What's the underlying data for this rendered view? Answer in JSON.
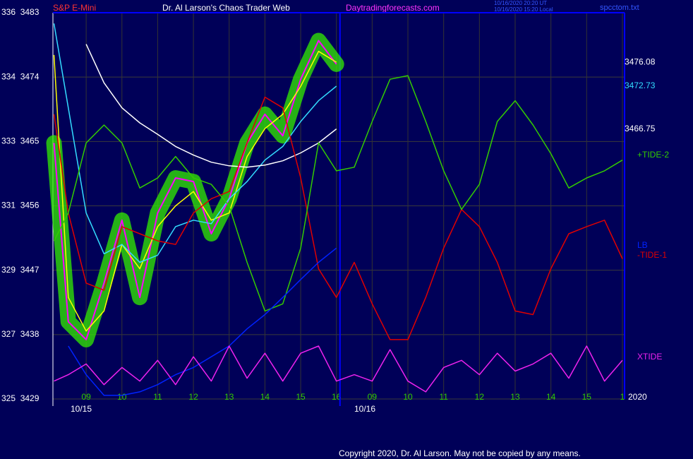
{
  "chart_data": {
    "type": "line",
    "title": "Dr. Al Larson's Chaos Trader Web",
    "annotations": [
      "S&P E-Mini",
      "Daytradingforecasts.com",
      "10/16/2020 20:20 UT",
      "10/16/2020 15:20 Local",
      "spcctom.txt",
      "2020",
      "Copyright 2020, Dr. Al Larson. May not be copied by any means."
    ],
    "date_labels": [
      "10/15",
      "10/16"
    ],
    "x": [
      8.1,
      8.5,
      9,
      9.5,
      10,
      10.5,
      11,
      11.5,
      12,
      12.5,
      13,
      13.5,
      14,
      14.5,
      15,
      15.5,
      16,
      16.5,
      17,
      17.5,
      18,
      18.5,
      19,
      19.5,
      20,
      20.5,
      21,
      21.5,
      22,
      22.5,
      23,
      23.5,
      24
    ],
    "xlim": [
      8.07,
      24.06
    ],
    "xticks": [
      {
        "value": 9,
        "label": "09"
      },
      10,
      11,
      12,
      13,
      14,
      15,
      16,
      {
        "value": 17,
        "label": "09"
      },
      {
        "value": 18,
        "label": "10"
      },
      {
        "value": 19,
        "label": "11"
      },
      {
        "value": 20,
        "label": "12"
      },
      {
        "value": 21,
        "label": "13"
      },
      {
        "value": 22,
        "label": "14"
      },
      {
        "value": 23,
        "label": "15"
      },
      {
        "value": 24,
        "label": "1"
      }
    ],
    "ylim": [
      3429,
      3483
    ],
    "yticks": [
      {
        "value": 3483,
        "label": "336  3483"
      },
      {
        "value": 3474,
        "label": "334  3474"
      },
      {
        "value": 3465,
        "label": "333  3465"
      },
      {
        "value": 3456,
        "label": "331  3456"
      },
      {
        "value": 3447,
        "label": "329  3447"
      },
      {
        "value": 3438,
        "label": "327  3438"
      },
      {
        "value": 3429,
        "label": "325  3429"
      }
    ],
    "grid": true,
    "now_line": {
      "x": 16.1,
      "color": "#0000ff"
    },
    "series": [
      {
        "color": "#ff00ff",
        "glow": "#33ee00",
        "values": [
          3464.8,
          3439.8,
          3437.3,
          3445.2,
          3454.0,
          3443.2,
          3455.0,
          3459.9,
          3459.4,
          3452.1,
          3457.0,
          3464.8,
          3468.8,
          3465.8,
          3473.7,
          3479.1,
          3475.8,
          null,
          null,
          null,
          null,
          null,
          null,
          null,
          null,
          null,
          null,
          null,
          null,
          null,
          null,
          null,
          null
        ]
      },
      {
        "color": "#ffff00",
        "end_label": true,
        "values": [
          3477.1,
          3443.2,
          3438.5,
          3441.3,
          3450.6,
          3447.2,
          3453.1,
          3456.0,
          3458.0,
          3454.0,
          3455.0,
          3462.9,
          3466.8,
          3468.8,
          3472.7,
          3477.6,
          3476.08,
          null,
          null,
          null,
          null,
          null,
          null,
          null,
          null,
          null,
          null,
          null,
          null,
          null,
          null,
          null,
          null
        ]
      },
      {
        "color": "#33ddff",
        "end_label": true,
        "values": [
          3481.5,
          3469.7,
          3455.0,
          3449.3,
          3450.6,
          3448.1,
          3449.1,
          3453.1,
          3454.0,
          3453.5,
          3457.0,
          3459.4,
          3462.4,
          3464.3,
          3467.8,
          3470.7,
          3472.73,
          null,
          null,
          null,
          null,
          null,
          null,
          null,
          null,
          null,
          null,
          null,
          null,
          null,
          null,
          null,
          null
        ]
      },
      {
        "color": "#ffffff",
        "end_label": true,
        "values": [
          null,
          null,
          3478.6,
          3473.2,
          3469.7,
          3467.6,
          3466.0,
          3464.3,
          3463.1,
          3462.1,
          3461.6,
          3461.4,
          3461.7,
          3462.3,
          3463.4,
          3464.8,
          3466.75,
          null,
          null,
          null,
          null,
          null,
          null,
          null,
          null,
          null,
          null,
          null,
          null,
          null,
          null,
          null,
          null
        ]
      },
      {
        "name": "-TIDE-1",
        "color": "#e00000",
        "values": [
          3468.8,
          3455.0,
          3445.2,
          3444.2,
          3453.1,
          3452.1,
          3451.1,
          3450.6,
          3455.0,
          3457.0,
          3458.0,
          3464.8,
          3471.2,
          3469.7,
          3459.9,
          3447.2,
          3443.2,
          3448.1,
          3442.3,
          3437.3,
          3437.3,
          3443.2,
          3450.1,
          3455.5,
          3453.1,
          3448.1,
          3441.3,
          3440.8,
          3447.2,
          3452.1,
          3453.1,
          3454.0,
          3448.6
        ]
      },
      {
        "name": "+TIDE-2",
        "color": "#33cc00",
        "values": [
          3451.1,
          3455.0,
          3464.8,
          3467.3,
          3464.8,
          3458.5,
          3459.9,
          3462.9,
          3459.9,
          3459.0,
          3456.0,
          3448.1,
          3441.3,
          3442.3,
          3450.1,
          3464.8,
          3460.9,
          3461.4,
          3467.8,
          3473.7,
          3474.2,
          3467.8,
          3460.9,
          3455.5,
          3459.0,
          3467.8,
          3470.7,
          3467.3,
          3463.3,
          3458.5,
          3459.9,
          3460.9,
          3462.4
        ]
      },
      {
        "name": "LB",
        "color": "#0022ff",
        "values": [
          null,
          3436.4,
          3432.4,
          3429.5,
          3429.5,
          3430.0,
          3431.0,
          3432.4,
          3433.4,
          3434.9,
          3436.4,
          3438.8,
          3440.8,
          3443.2,
          3445.7,
          3448.1,
          3450.1,
          null,
          null,
          null,
          null,
          null,
          null,
          null,
          null,
          null,
          null,
          null,
          null,
          null,
          null,
          null,
          null
        ]
      },
      {
        "name": "XTIDE",
        "color": "#ee22ee",
        "values": [
          3431.5,
          3432.4,
          3433.9,
          3431.0,
          3433.4,
          3431.5,
          3434.4,
          3431.0,
          3434.9,
          3431.5,
          3436.4,
          3431.9,
          3435.4,
          3431.5,
          3435.4,
          3436.4,
          3431.5,
          3432.4,
          3431.5,
          3435.9,
          3431.5,
          3430.0,
          3433.4,
          3434.4,
          3432.4,
          3435.4,
          3432.9,
          3433.9,
          3435.4,
          3431.9,
          3436.4,
          3431.5,
          3434.4
        ]
      }
    ]
  }
}
